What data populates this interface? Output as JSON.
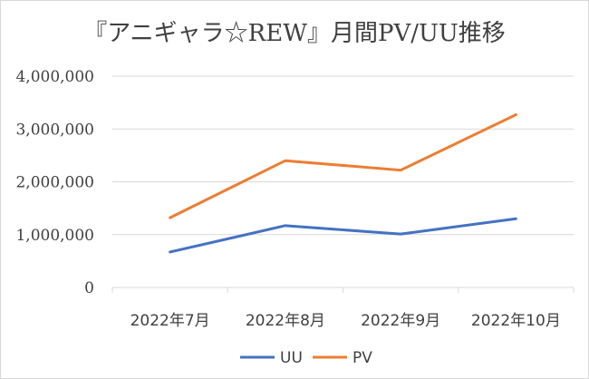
{
  "colors": {
    "uu": "#4472c4",
    "pv": "#ed7d31",
    "grid": "#d9d9d9",
    "text": "#404040"
  },
  "chart_data": {
    "type": "line",
    "title": "『アニギャラ☆REW』月間PV/UU推移",
    "xlabel": "",
    "ylabel": "",
    "categories": [
      "2022年7月",
      "2022年8月",
      "2022年9月",
      "2022年10月"
    ],
    "ylim": [
      0,
      4000000
    ],
    "yticks": [
      "0",
      "1,000,000",
      "2,000,000",
      "3,000,000",
      "4,000,000"
    ],
    "grid": true,
    "legend_position": "bottom",
    "series": [
      {
        "name": "UU",
        "values": [
          670000,
          1170000,
          1010000,
          1300000
        ]
      },
      {
        "name": "PV",
        "values": [
          1320000,
          2400000,
          2220000,
          3270000
        ]
      }
    ]
  }
}
